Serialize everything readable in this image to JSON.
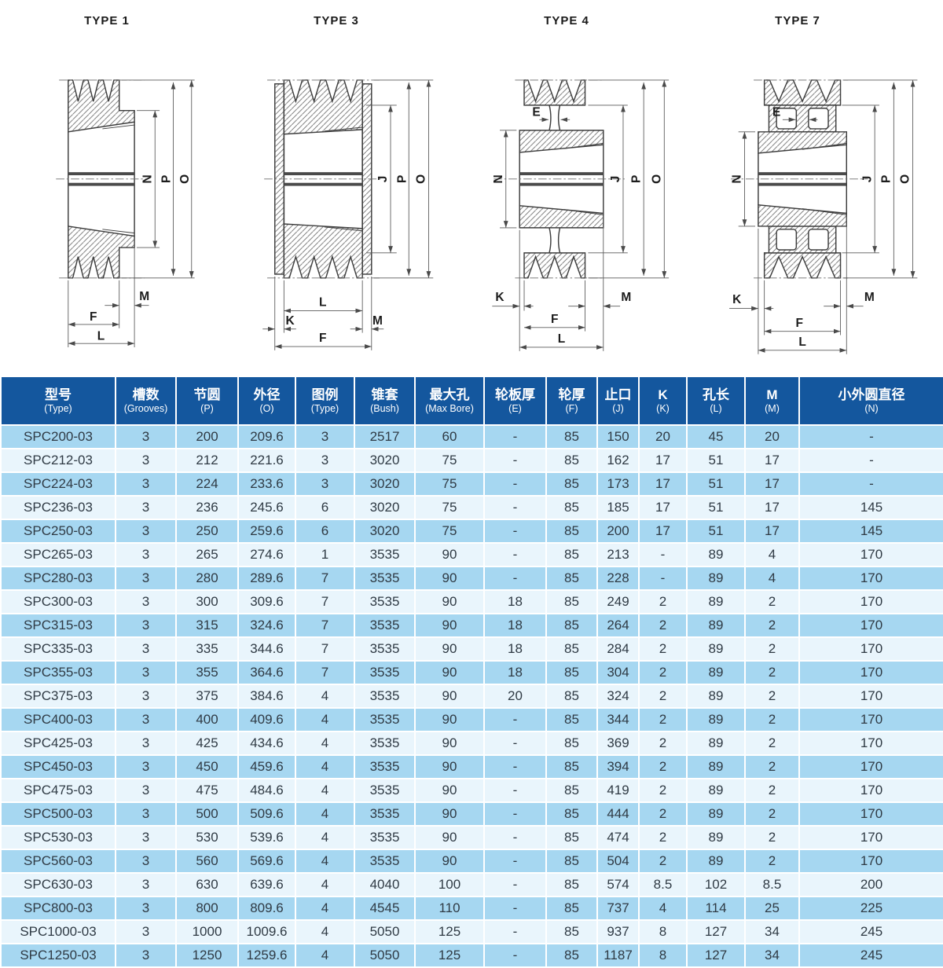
{
  "colors": {
    "header_bg": "#14579e",
    "row_stripe_dark": "#a6d7f1",
    "row_stripe_light": "#e9f5fc",
    "cell_text": "#2f3a44",
    "drawing_line": "#3d3d3d"
  },
  "drawings": [
    {
      "title": "TYPE 1",
      "labels": {
        "n": "N",
        "p": "P",
        "o": "O",
        "m": "M",
        "f": "F",
        "l": "L"
      }
    },
    {
      "title": "TYPE 3",
      "labels": {
        "j": "J",
        "p": "P",
        "o": "O",
        "l": "L",
        "k": "K",
        "m": "M",
        "f": "F"
      }
    },
    {
      "title": "TYPE 4",
      "labels": {
        "e": "E",
        "n": "N",
        "j": "J",
        "p": "P",
        "o": "O",
        "k": "K",
        "m": "M",
        "f": "F",
        "l": "L"
      }
    },
    {
      "title": "TYPE 7",
      "labels": {
        "e": "E",
        "n": "N",
        "j": "J",
        "p": "P",
        "o": "O",
        "k": "K",
        "m": "M",
        "f": "F",
        "l": "L"
      }
    }
  ],
  "table": {
    "columns": [
      {
        "zh": "型号",
        "en": "(Type)"
      },
      {
        "zh": "槽数",
        "en": "(Grooves)"
      },
      {
        "zh": "节圆",
        "en": "(P)"
      },
      {
        "zh": "外径",
        "en": "(O)"
      },
      {
        "zh": "图例",
        "en": "(Type)"
      },
      {
        "zh": "锥套",
        "en": "(Bush)"
      },
      {
        "zh": "最大孔",
        "en": "(Max Bore)"
      },
      {
        "zh": "轮板厚",
        "en": "(E)"
      },
      {
        "zh": "轮厚",
        "en": "(F)"
      },
      {
        "zh": "止口",
        "en": "(J)"
      },
      {
        "zh": "K",
        "en": "(K)"
      },
      {
        "zh": "孔长",
        "en": "(L)"
      },
      {
        "zh": "M",
        "en": "(M)"
      },
      {
        "zh": "小外圆直径",
        "en": "(N)"
      }
    ],
    "rows": [
      [
        "SPC200-03",
        "3",
        "200",
        "209.6",
        "3",
        "2517",
        "60",
        "-",
        "85",
        "150",
        "20",
        "45",
        "20",
        "-"
      ],
      [
        "SPC212-03",
        "3",
        "212",
        "221.6",
        "3",
        "3020",
        "75",
        "-",
        "85",
        "162",
        "17",
        "51",
        "17",
        "-"
      ],
      [
        "SPC224-03",
        "3",
        "224",
        "233.6",
        "3",
        "3020",
        "75",
        "-",
        "85",
        "173",
        "17",
        "51",
        "17",
        "-"
      ],
      [
        "SPC236-03",
        "3",
        "236",
        "245.6",
        "6",
        "3020",
        "75",
        "-",
        "85",
        "185",
        "17",
        "51",
        "17",
        "145"
      ],
      [
        "SPC250-03",
        "3",
        "250",
        "259.6",
        "6",
        "3020",
        "75",
        "-",
        "85",
        "200",
        "17",
        "51",
        "17",
        "145"
      ],
      [
        "SPC265-03",
        "3",
        "265",
        "274.6",
        "1",
        "3535",
        "90",
        "-",
        "85",
        "213",
        "-",
        "89",
        "4",
        "170"
      ],
      [
        "SPC280-03",
        "3",
        "280",
        "289.6",
        "7",
        "3535",
        "90",
        "-",
        "85",
        "228",
        "-",
        "89",
        "4",
        "170"
      ],
      [
        "SPC300-03",
        "3",
        "300",
        "309.6",
        "7",
        "3535",
        "90",
        "18",
        "85",
        "249",
        "2",
        "89",
        "2",
        "170"
      ],
      [
        "SPC315-03",
        "3",
        "315",
        "324.6",
        "7",
        "3535",
        "90",
        "18",
        "85",
        "264",
        "2",
        "89",
        "2",
        "170"
      ],
      [
        "SPC335-03",
        "3",
        "335",
        "344.6",
        "7",
        "3535",
        "90",
        "18",
        "85",
        "284",
        "2",
        "89",
        "2",
        "170"
      ],
      [
        "SPC355-03",
        "3",
        "355",
        "364.6",
        "7",
        "3535",
        "90",
        "18",
        "85",
        "304",
        "2",
        "89",
        "2",
        "170"
      ],
      [
        "SPC375-03",
        "3",
        "375",
        "384.6",
        "4",
        "3535",
        "90",
        "20",
        "85",
        "324",
        "2",
        "89",
        "2",
        "170"
      ],
      [
        "SPC400-03",
        "3",
        "400",
        "409.6",
        "4",
        "3535",
        "90",
        "-",
        "85",
        "344",
        "2",
        "89",
        "2",
        "170"
      ],
      [
        "SPC425-03",
        "3",
        "425",
        "434.6",
        "4",
        "3535",
        "90",
        "-",
        "85",
        "369",
        "2",
        "89",
        "2",
        "170"
      ],
      [
        "SPC450-03",
        "3",
        "450",
        "459.6",
        "4",
        "3535",
        "90",
        "-",
        "85",
        "394",
        "2",
        "89",
        "2",
        "170"
      ],
      [
        "SPC475-03",
        "3",
        "475",
        "484.6",
        "4",
        "3535",
        "90",
        "-",
        "85",
        "419",
        "2",
        "89",
        "2",
        "170"
      ],
      [
        "SPC500-03",
        "3",
        "500",
        "509.6",
        "4",
        "3535",
        "90",
        "-",
        "85",
        "444",
        "2",
        "89",
        "2",
        "170"
      ],
      [
        "SPC530-03",
        "3",
        "530",
        "539.6",
        "4",
        "3535",
        "90",
        "-",
        "85",
        "474",
        "2",
        "89",
        "2",
        "170"
      ],
      [
        "SPC560-03",
        "3",
        "560",
        "569.6",
        "4",
        "3535",
        "90",
        "-",
        "85",
        "504",
        "2",
        "89",
        "2",
        "170"
      ],
      [
        "SPC630-03",
        "3",
        "630",
        "639.6",
        "4",
        "4040",
        "100",
        "-",
        "85",
        "574",
        "8.5",
        "102",
        "8.5",
        "200"
      ],
      [
        "SPC800-03",
        "3",
        "800",
        "809.6",
        "4",
        "4545",
        "110",
        "-",
        "85",
        "737",
        "4",
        "114",
        "25",
        "225"
      ],
      [
        "SPC1000-03",
        "3",
        "1000",
        "1009.6",
        "4",
        "5050",
        "125",
        "-",
        "85",
        "937",
        "8",
        "127",
        "34",
        "245"
      ],
      [
        "SPC1250-03",
        "3",
        "1250",
        "1259.6",
        "4",
        "5050",
        "125",
        "-",
        "85",
        "1187",
        "8",
        "127",
        "34",
        "245"
      ]
    ]
  }
}
